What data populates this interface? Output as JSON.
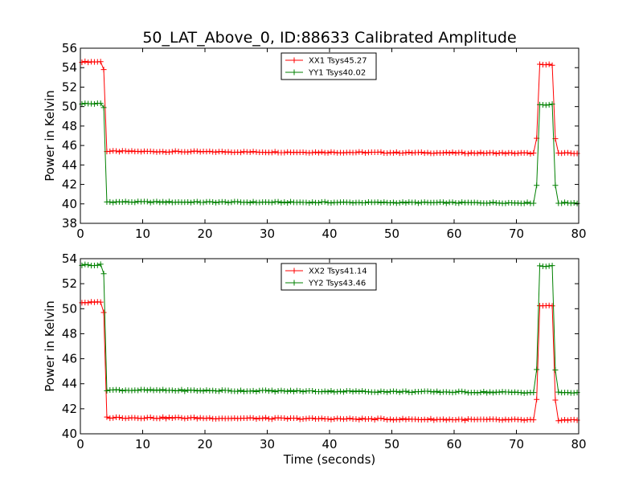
{
  "chart_data": [
    {
      "type": "line",
      "title": "50_LAT_Above_0, ID:88633 Calibrated Amplitude",
      "xlabel": "",
      "ylabel": "Power in Kelvin",
      "xlim": [
        0,
        80
      ],
      "ylim": [
        38,
        56
      ],
      "xticks": [
        "0",
        "10",
        "20",
        "30",
        "40",
        "50",
        "60",
        "70",
        "80"
      ],
      "yticks": [
        "38",
        "40",
        "42",
        "44",
        "46",
        "48",
        "50",
        "52",
        "54",
        "56"
      ],
      "grid": false,
      "legend_position": "top-center",
      "x_sampling": {
        "start": 0.25,
        "step": 0.5,
        "end": 79.75
      },
      "series": [
        {
          "name": "XX1 Tsys45.27",
          "color": "#ff0000",
          "marker": "plus",
          "segments": [
            {
              "x": [
                0.25,
                3.25
              ],
              "y": [
                54.6,
                54.6
              ]
            },
            {
              "x": [
                3.75,
                3.75
              ],
              "y": [
                53.8,
                53.8
              ]
            },
            {
              "x": [
                4.25,
                73.25
              ],
              "y": [
                45.4,
                45.2
              ]
            },
            {
              "x": [
                73.25,
                73.25
              ],
              "y": [
                46.7,
                46.7
              ]
            },
            {
              "x": [
                73.75,
                75.75
              ],
              "y": [
                54.3,
                54.3
              ]
            },
            {
              "x": [
                76.25,
                76.25
              ],
              "y": [
                46.7,
                46.7
              ]
            },
            {
              "x": [
                76.75,
                79.75
              ],
              "y": [
                45.2,
                45.2
              ]
            }
          ]
        },
        {
          "name": "YY1 Tsys40.02",
          "color": "#008000",
          "marker": "plus",
          "segments": [
            {
              "x": [
                0.25,
                3.25
              ],
              "y": [
                50.3,
                50.3
              ]
            },
            {
              "x": [
                3.75,
                3.75
              ],
              "y": [
                49.9,
                49.9
              ]
            },
            {
              "x": [
                4.25,
                73.25
              ],
              "y": [
                40.2,
                40.1
              ]
            },
            {
              "x": [
                73.25,
                73.25
              ],
              "y": [
                41.9,
                41.9
              ]
            },
            {
              "x": [
                73.75,
                75.75
              ],
              "y": [
                50.2,
                50.2
              ]
            },
            {
              "x": [
                76.25,
                76.25
              ],
              "y": [
                41.9,
                41.9
              ]
            },
            {
              "x": [
                76.75,
                79.75
              ],
              "y": [
                40.1,
                40.1
              ]
            }
          ]
        }
      ]
    },
    {
      "type": "line",
      "title": "",
      "xlabel": "Time (seconds)",
      "ylabel": "Power in Kelvin",
      "xlim": [
        0,
        80
      ],
      "ylim": [
        40,
        54
      ],
      "xticks": [
        "0",
        "10",
        "20",
        "30",
        "40",
        "50",
        "60",
        "70",
        "80"
      ],
      "yticks": [
        "40",
        "42",
        "44",
        "46",
        "48",
        "50",
        "52",
        "54"
      ],
      "grid": false,
      "legend_position": "top-center",
      "x_sampling": {
        "start": 0.25,
        "step": 0.5,
        "end": 79.75
      },
      "series": [
        {
          "name": "XX2 Tsys41.14",
          "color": "#ff0000",
          "marker": "plus",
          "segments": [
            {
              "x": [
                0.25,
                3.25
              ],
              "y": [
                50.5,
                50.5
              ]
            },
            {
              "x": [
                3.75,
                3.75
              ],
              "y": [
                49.7,
                49.7
              ]
            },
            {
              "x": [
                4.25,
                73.25
              ],
              "y": [
                41.3,
                41.1
              ]
            },
            {
              "x": [
                73.25,
                73.25
              ],
              "y": [
                42.7,
                42.7
              ]
            },
            {
              "x": [
                73.75,
                75.75
              ],
              "y": [
                50.2,
                50.2
              ]
            },
            {
              "x": [
                76.25,
                76.25
              ],
              "y": [
                42.7,
                42.7
              ]
            },
            {
              "x": [
                76.75,
                79.75
              ],
              "y": [
                41.1,
                41.1
              ]
            }
          ]
        },
        {
          "name": "YY2 Tsys43.46",
          "color": "#008000",
          "marker": "plus",
          "segments": [
            {
              "x": [
                0.25,
                3.25
              ],
              "y": [
                53.5,
                53.5
              ]
            },
            {
              "x": [
                3.75,
                3.75
              ],
              "y": [
                52.8,
                52.8
              ]
            },
            {
              "x": [
                4.25,
                73.25
              ],
              "y": [
                43.5,
                43.3
              ]
            },
            {
              "x": [
                73.25,
                73.25
              ],
              "y": [
                45.1,
                45.1
              ]
            },
            {
              "x": [
                73.75,
                75.75
              ],
              "y": [
                53.4,
                53.4
              ]
            },
            {
              "x": [
                76.25,
                76.25
              ],
              "y": [
                45.1,
                45.1
              ]
            },
            {
              "x": [
                76.75,
                79.75
              ],
              "y": [
                43.3,
                43.3
              ]
            }
          ]
        }
      ]
    }
  ]
}
